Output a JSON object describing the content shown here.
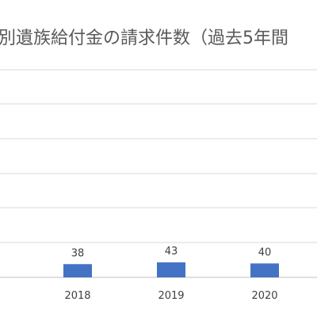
{
  "chart_data": {
    "type": "bar",
    "title": "別遺族給付金の請求件数（過去5年間",
    "categories": [
      "2018",
      "2019",
      "2020"
    ],
    "values": [
      38,
      43,
      40
    ],
    "ylim": [
      0,
      300
    ],
    "grid": true,
    "colors": {
      "bar": "#4472c4",
      "grid": "#d9d9d9",
      "axis": "#bfbfbf"
    }
  }
}
